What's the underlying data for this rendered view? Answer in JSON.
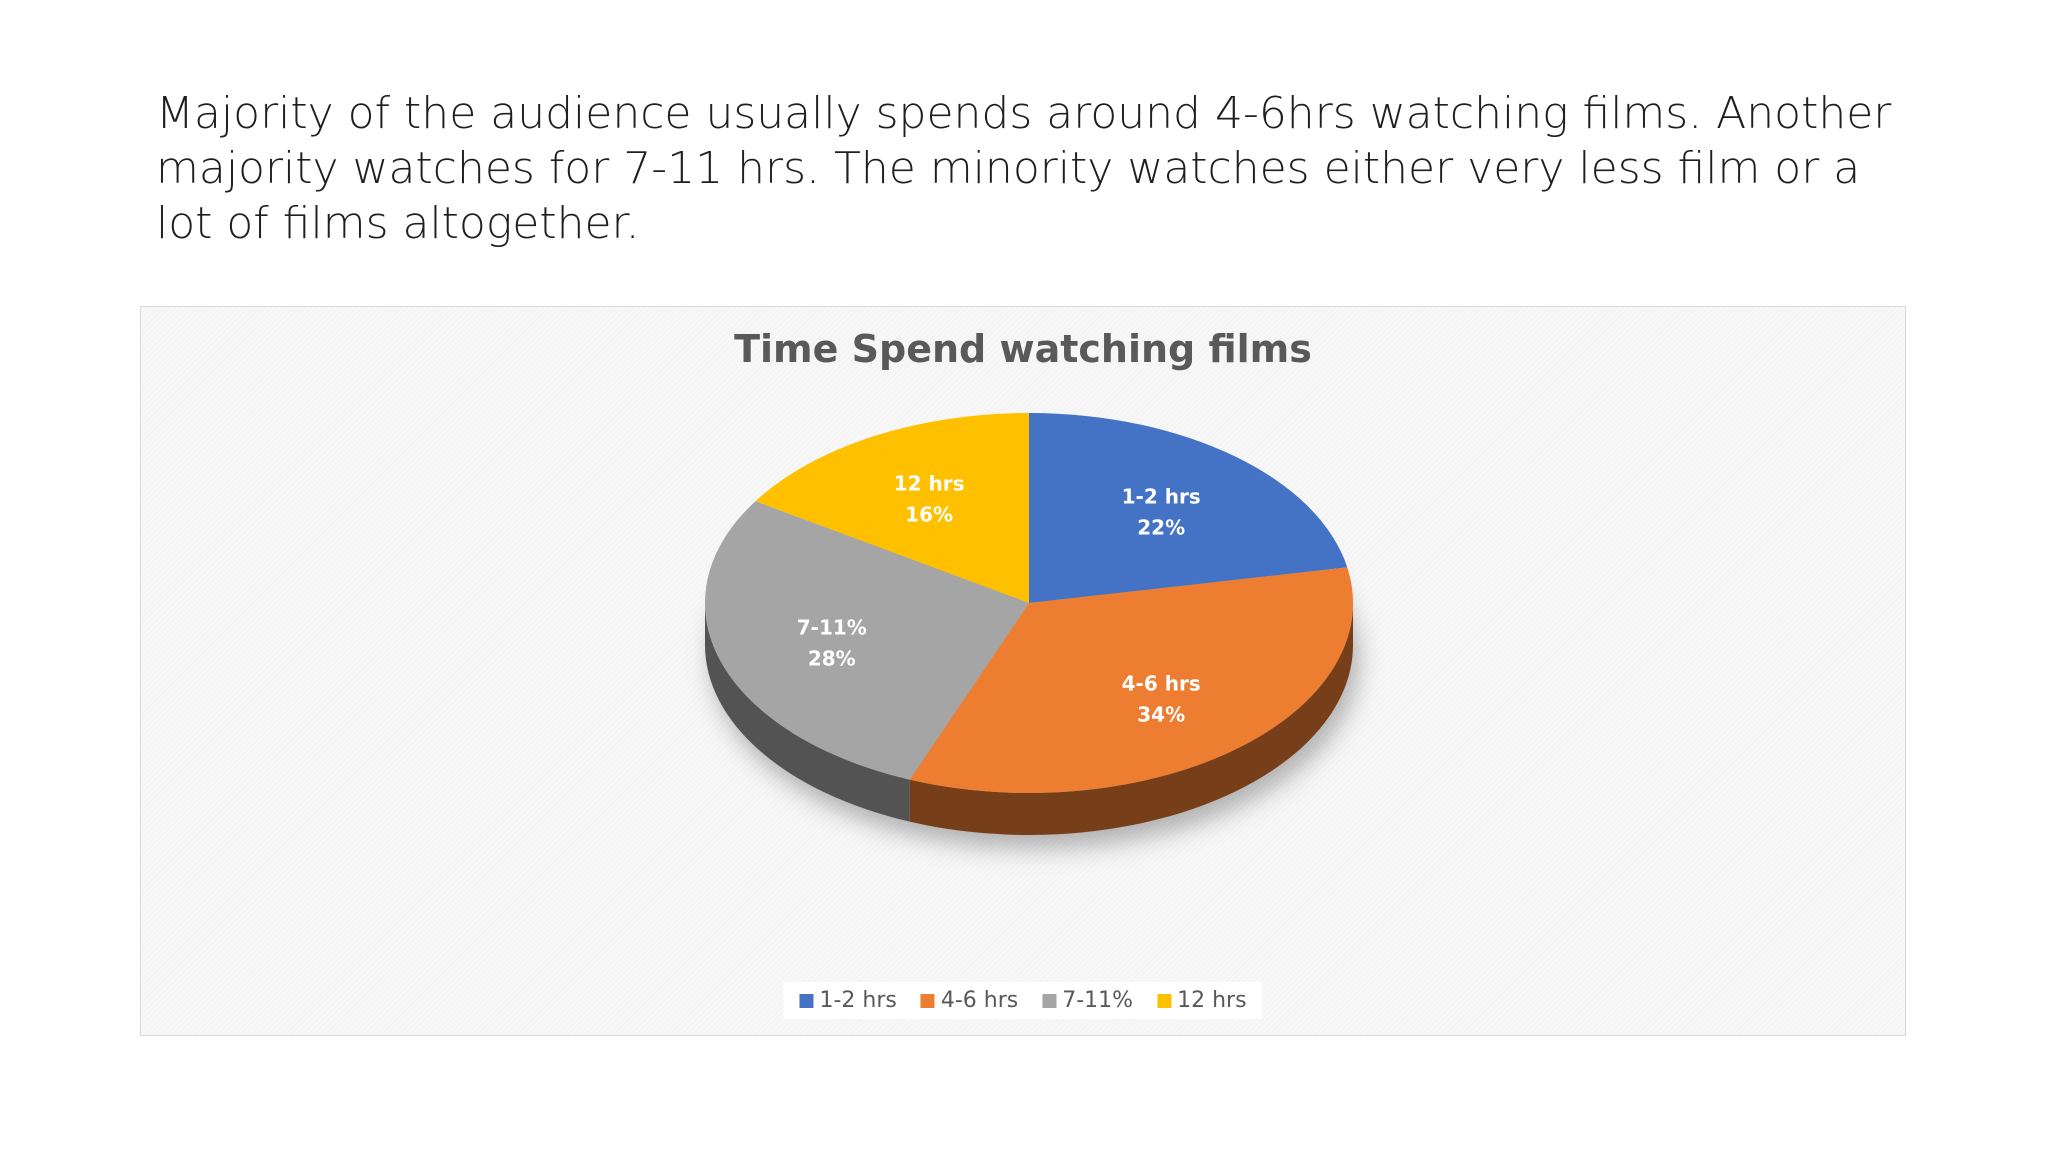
{
  "slide": {
    "text": "Majority of the audience usually spends around 4-6hrs watching films. Another majority watches for 7-11 hrs. The minority watches either very less film or a lot of films altogether."
  },
  "chart_data": {
    "type": "pie",
    "title": "Time Spend watching films",
    "categories": [
      "1-2 hrs",
      "4-6 hrs",
      "7-11%",
      "12 hrs"
    ],
    "values": [
      22,
      34,
      28,
      16
    ],
    "value_labels": [
      "22%",
      "34%",
      "28%",
      "16%"
    ],
    "colors": [
      "#4472C4",
      "#ED7D31",
      "#A5A5A5",
      "#FFC000"
    ],
    "legend_position": "bottom",
    "style": "3d"
  }
}
